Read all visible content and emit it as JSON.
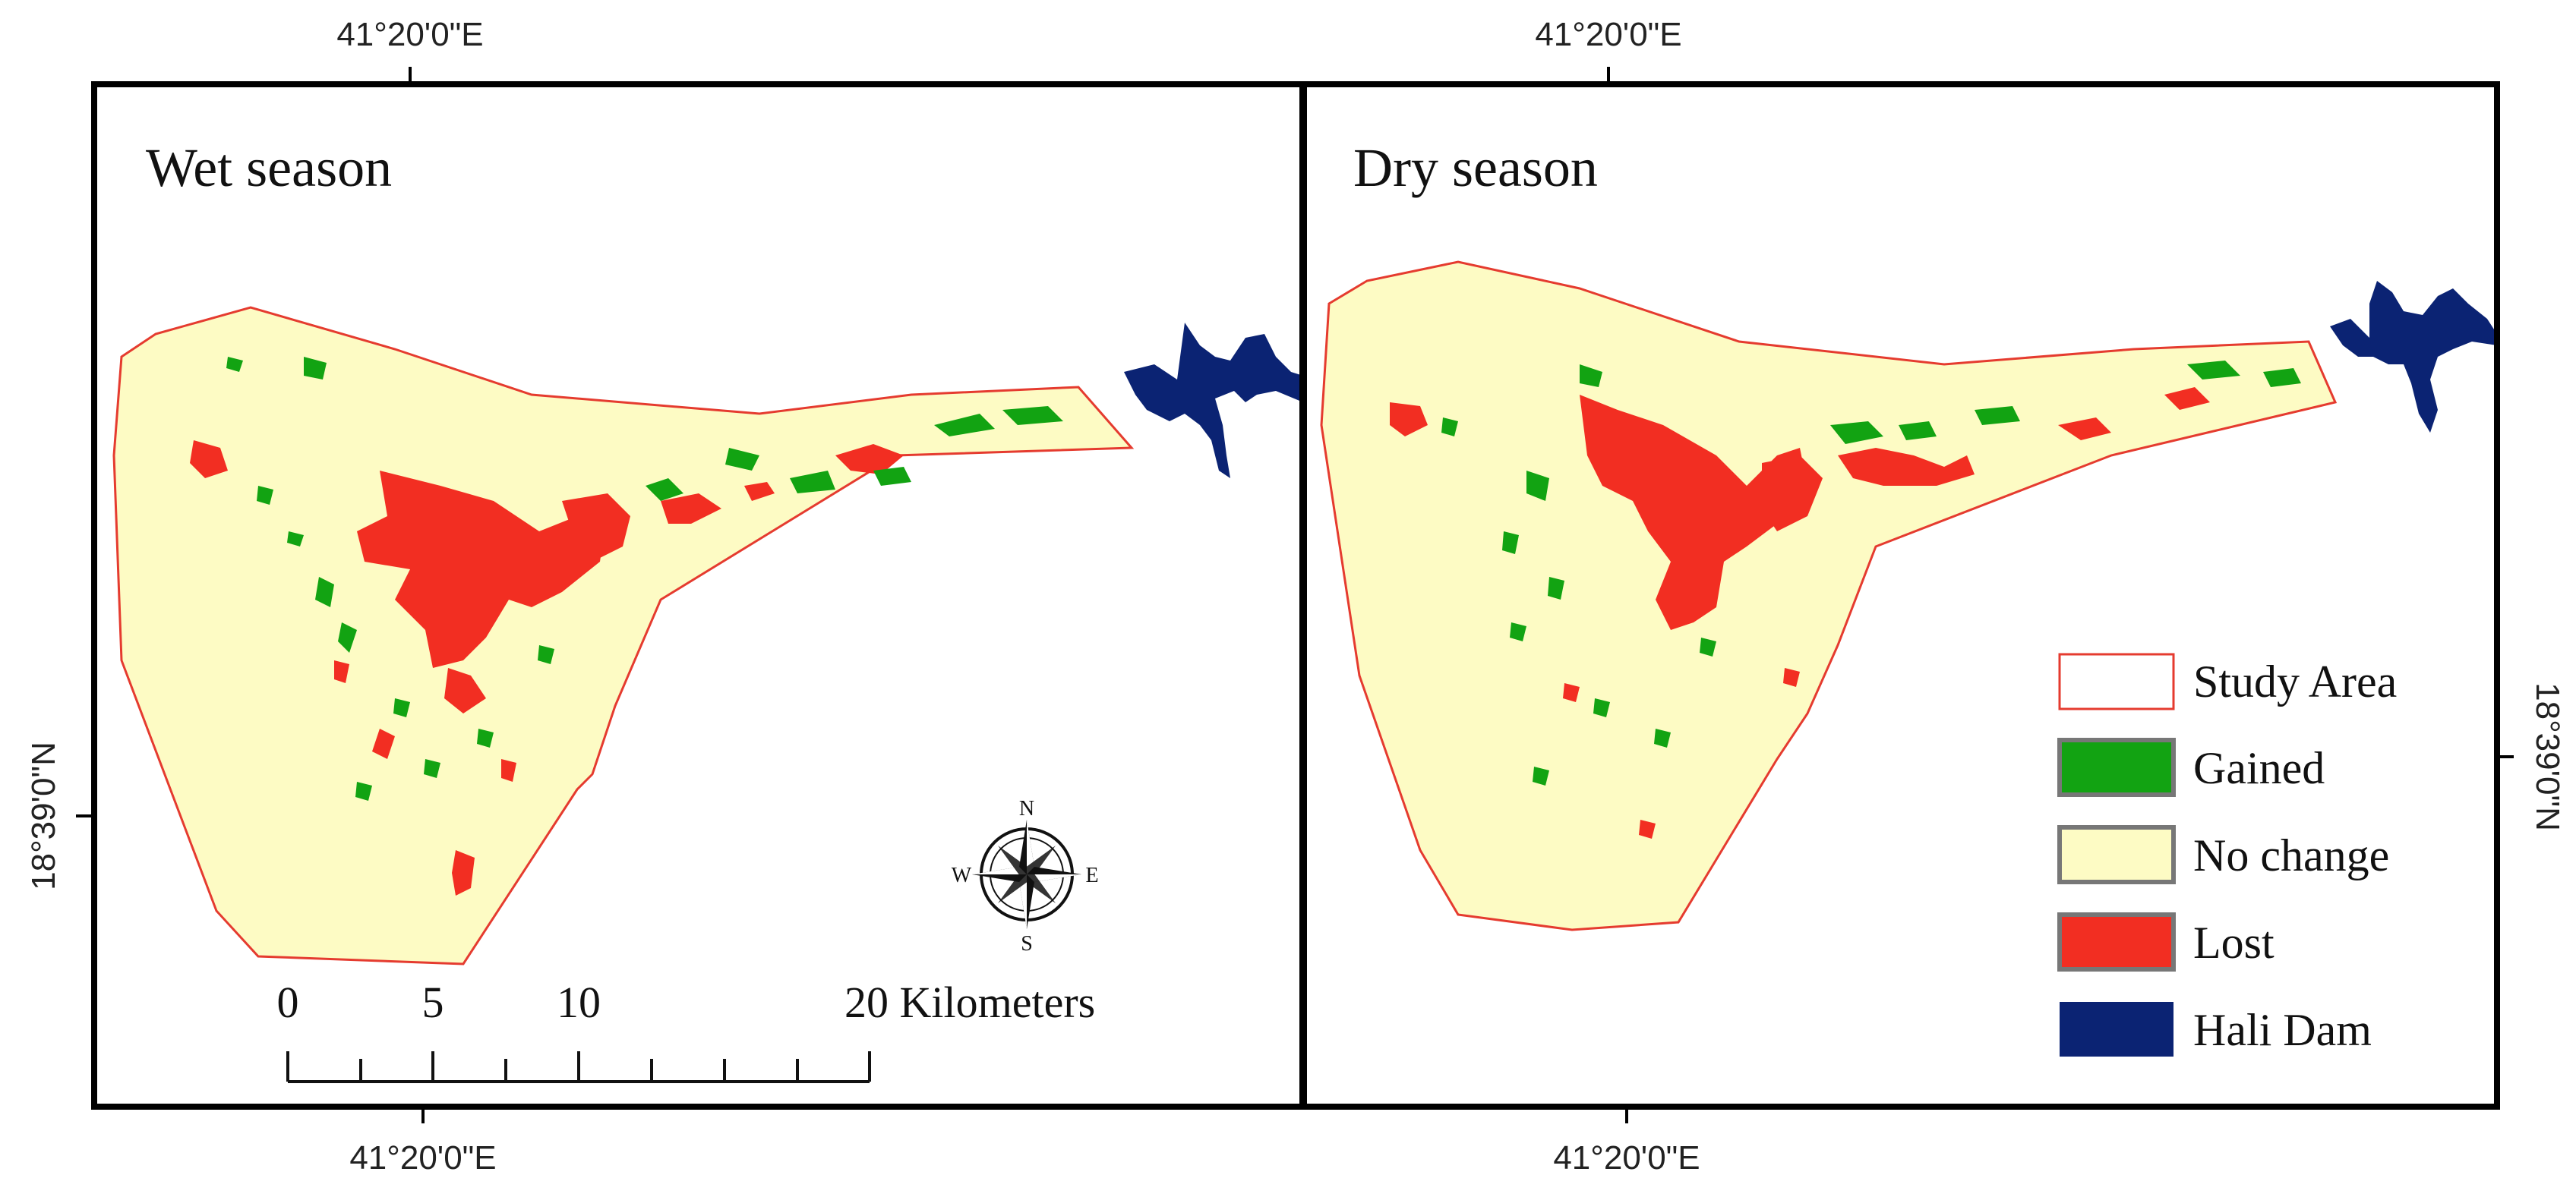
{
  "figure": {
    "top_coord_left": "41°20'0\"E",
    "top_coord_right": "41°20'0\"E",
    "bottom_coord_left": "41°20'0\"E",
    "bottom_coord_right": "41°20'0\"E",
    "left_coord": "18°39'0\"N",
    "right_coord": "18°39'0\"N"
  },
  "panels": [
    {
      "title": "Wet season"
    },
    {
      "title": "Dry season"
    }
  ],
  "scale_bar": {
    "labels": [
      "0",
      "5",
      "10",
      "20 Kilometers"
    ]
  },
  "compass": {
    "n": "N",
    "s": "S",
    "e": "E",
    "w": "W"
  },
  "legend": {
    "items": [
      {
        "label": "Study Area",
        "color": "#ffffff",
        "border": "#e53b2f"
      },
      {
        "label": "Gained",
        "color": "#12a312",
        "border": "#777777"
      },
      {
        "label": "No change",
        "color": "#fdfbc4",
        "border": "#777777"
      },
      {
        "label": "Lost",
        "color": "#f22e22",
        "border": "#777777"
      },
      {
        "label": "Hali Dam",
        "color": "#0b2373",
        "border": "#0b2373"
      }
    ]
  },
  "colors": {
    "no_change": "#fdfbc4",
    "gained": "#12a312",
    "lost": "#f22e22",
    "dam": "#0b2373",
    "outline": "#e53b2f"
  }
}
